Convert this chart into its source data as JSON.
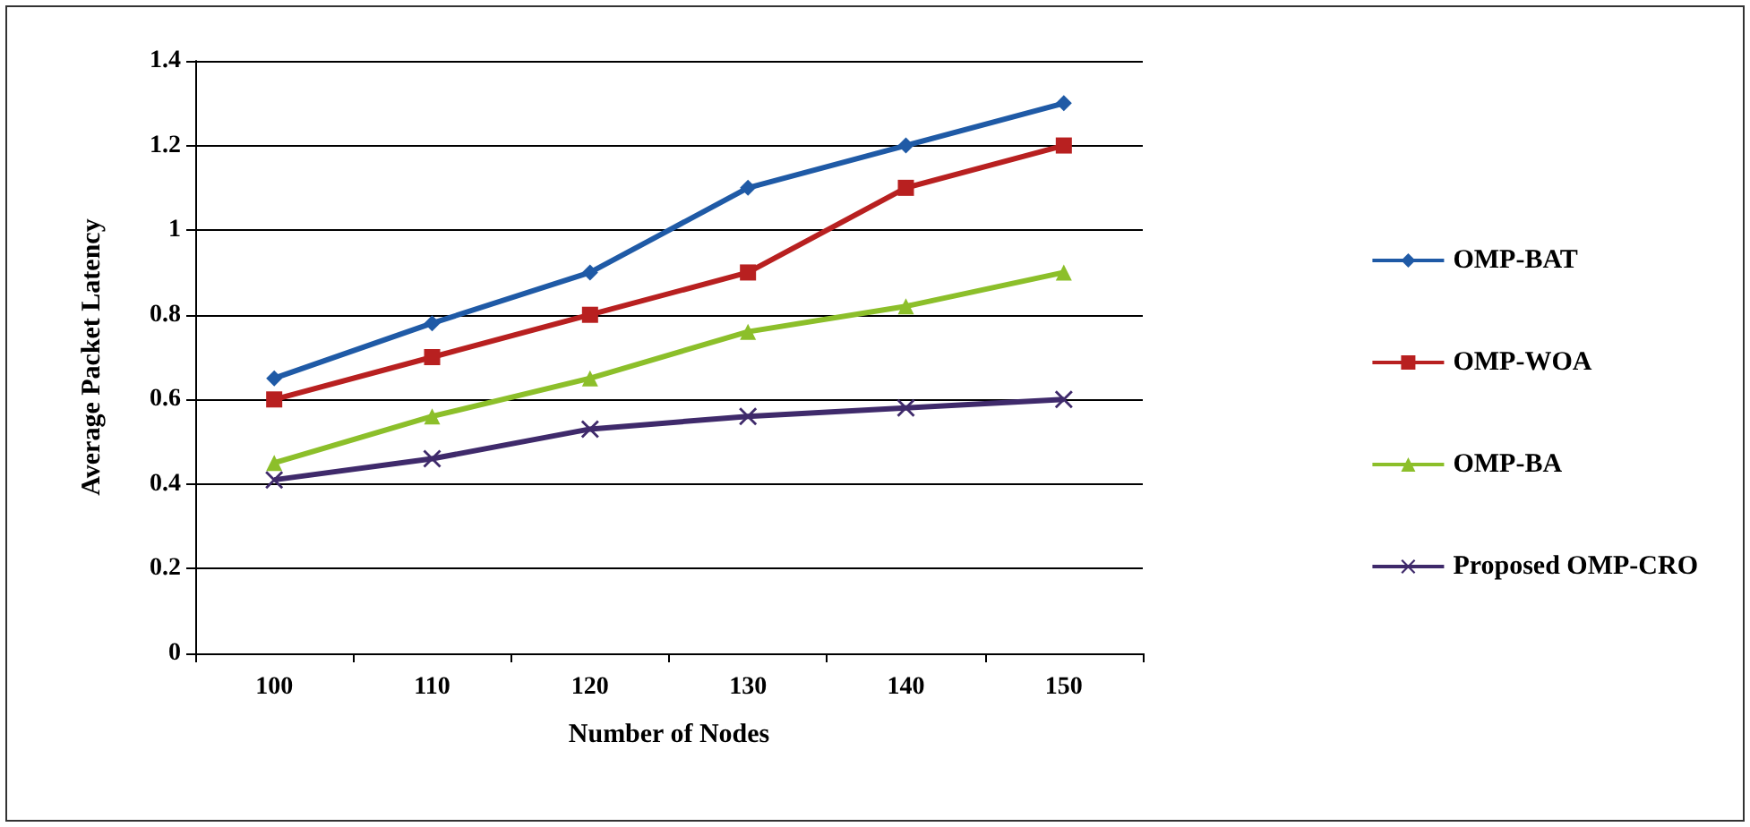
{
  "chart_data": {
    "type": "line",
    "xlabel": "Number of Nodes",
    "ylabel": "Average Packet Latency",
    "categories": [
      "100",
      "110",
      "120",
      "130",
      "140",
      "150"
    ],
    "series": [
      {
        "name": "OMP-BAT",
        "color": "#1f5aa6",
        "marker": "diamond",
        "values": [
          0.65,
          0.78,
          0.9,
          1.1,
          1.2,
          1.3
        ]
      },
      {
        "name": "OMP-WOA",
        "color": "#b82020",
        "marker": "square",
        "values": [
          0.6,
          0.7,
          0.8,
          0.9,
          1.1,
          1.2
        ]
      },
      {
        "name": "OMP-BA",
        "color": "#8cbf2a",
        "marker": "triangle",
        "values": [
          0.45,
          0.56,
          0.65,
          0.76,
          0.82,
          0.9
        ]
      },
      {
        "name": "Proposed OMP-CRO",
        "color": "#3f2a6b",
        "marker": "cross",
        "values": [
          0.41,
          0.46,
          0.53,
          0.56,
          0.58,
          0.6
        ]
      }
    ],
    "ylim": [
      0,
      1.4
    ],
    "yticks": [
      0,
      0.2,
      0.4,
      0.6,
      0.8,
      1,
      1.2,
      1.4
    ],
    "grid": "y",
    "legend": "right"
  }
}
